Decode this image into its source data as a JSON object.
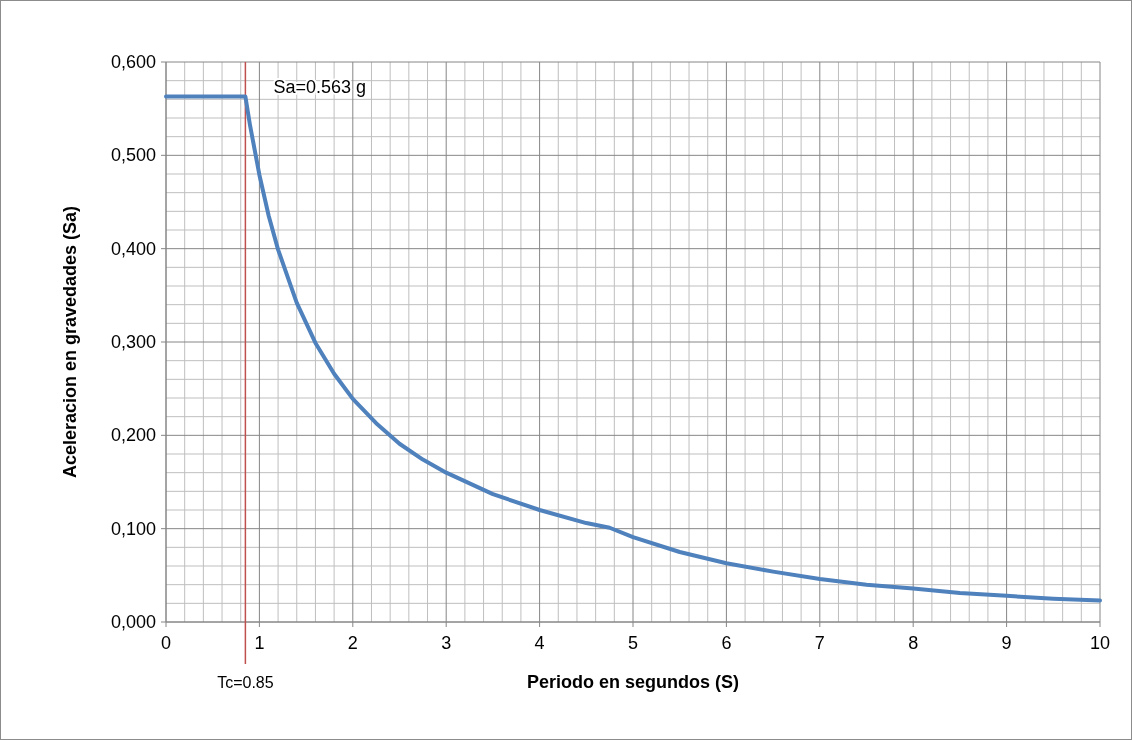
{
  "chart_data": {
    "type": "line",
    "xlabel": "Periodo en segundos (S)",
    "ylabel": "Aceleracion en gravedades (Sa)",
    "x": [
      0,
      0.85,
      0.9,
      1.0,
      1.1,
      1.2,
      1.4,
      1.6,
      1.8,
      2,
      2.25,
      2.5,
      2.75,
      3,
      3.5,
      4,
      4.5,
      4.75,
      5,
      5.5,
      6,
      6.5,
      7,
      7.5,
      8,
      8.5,
      9,
      9.5,
      10
    ],
    "series": [
      {
        "color": "#4f81bd",
        "values": [
          0.563,
          0.563,
          0.532,
          0.479,
          0.435,
          0.399,
          0.342,
          0.299,
          0.266,
          0.239,
          0.213,
          0.191,
          0.174,
          0.16,
          0.137,
          0.12,
          0.106,
          0.101,
          0.091,
          0.075,
          0.063,
          0.054,
          0.046,
          0.04,
          0.036,
          0.031,
          0.028,
          0.025,
          0.023
        ]
      }
    ],
    "xlim": [
      0,
      10
    ],
    "xticks": [
      0,
      1,
      2,
      3,
      4,
      5,
      6,
      7,
      8,
      9,
      10
    ],
    "ylim": [
      0,
      0.6
    ],
    "yticks": [
      {
        "value": 0,
        "label": "0,000"
      },
      {
        "value": 0.1,
        "label": "0,100"
      },
      {
        "value": 0.2,
        "label": "0,200"
      },
      {
        "value": 0.3,
        "label": "0,300"
      },
      {
        "value": 0.4,
        "label": "0,400"
      },
      {
        "value": 0.5,
        "label": "0,500"
      },
      {
        "value": 0.6,
        "label": "0,600"
      }
    ],
    "grid": true,
    "marker": "none",
    "line_style": "solid",
    "ref_lines": [
      {
        "axis": "x",
        "value": 0.85,
        "label": "Tc=0.85",
        "color": "#c0504d"
      }
    ],
    "annotations": [
      {
        "text": "Sa=0.563 g",
        "x": 0.85,
        "y": 0.563
      }
    ]
  }
}
